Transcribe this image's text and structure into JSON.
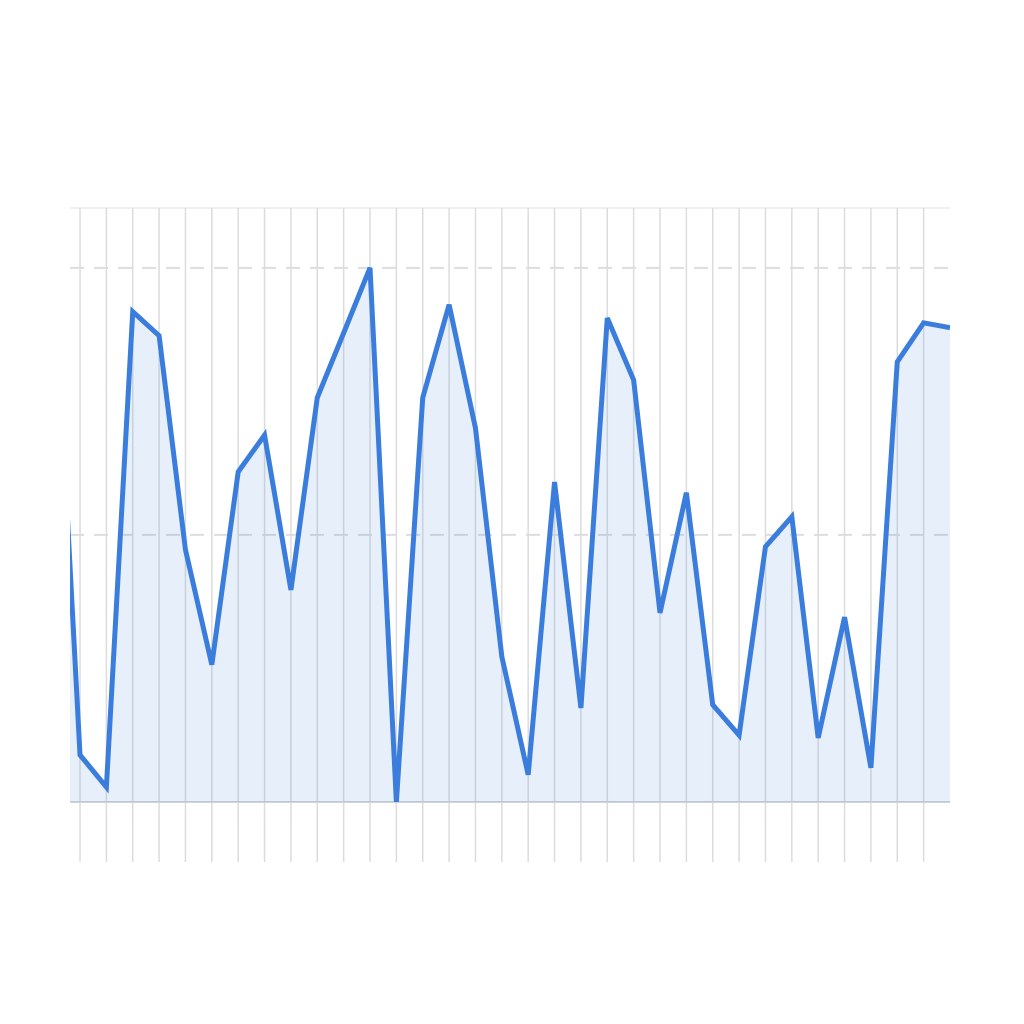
{
  "chart_data": {
    "type": "area",
    "x": [
      -1,
      0,
      1,
      2,
      3,
      4,
      5,
      6,
      7,
      8,
      9,
      10,
      11,
      12,
      13,
      14,
      15,
      16,
      17,
      18,
      19,
      20,
      21,
      22,
      23,
      24,
      25,
      26,
      27,
      28,
      29,
      30,
      31,
      32,
      33
    ],
    "values": [
      102,
      8.8,
      2.8,
      91.8,
      87.3,
      47.2,
      25.7,
      61.8,
      68.7,
      39.7,
      75.7,
      87.8,
      100,
      0,
      75.7,
      93.1,
      70,
      27.2,
      5.1,
      59.9,
      17.6,
      90.6,
      79,
      35.4,
      57.9,
      18.2,
      12.5,
      47.8,
      53.4,
      12,
      34.6,
      6.4,
      82.4,
      89.7,
      88.8
    ],
    "color": "#3b7ddd",
    "xlim": [
      -0.38,
      33
    ],
    "xticks": [
      0,
      1,
      2,
      3,
      4,
      5,
      6,
      7,
      8,
      9,
      10,
      11,
      12,
      13,
      14,
      15,
      16,
      17,
      18,
      19,
      20,
      21,
      22,
      23,
      24,
      25,
      26,
      27,
      28,
      29,
      30,
      31,
      32
    ],
    "ylim": [
      0,
      111.2
    ],
    "yticks": [
      0,
      50,
      100
    ],
    "grid": true
  }
}
